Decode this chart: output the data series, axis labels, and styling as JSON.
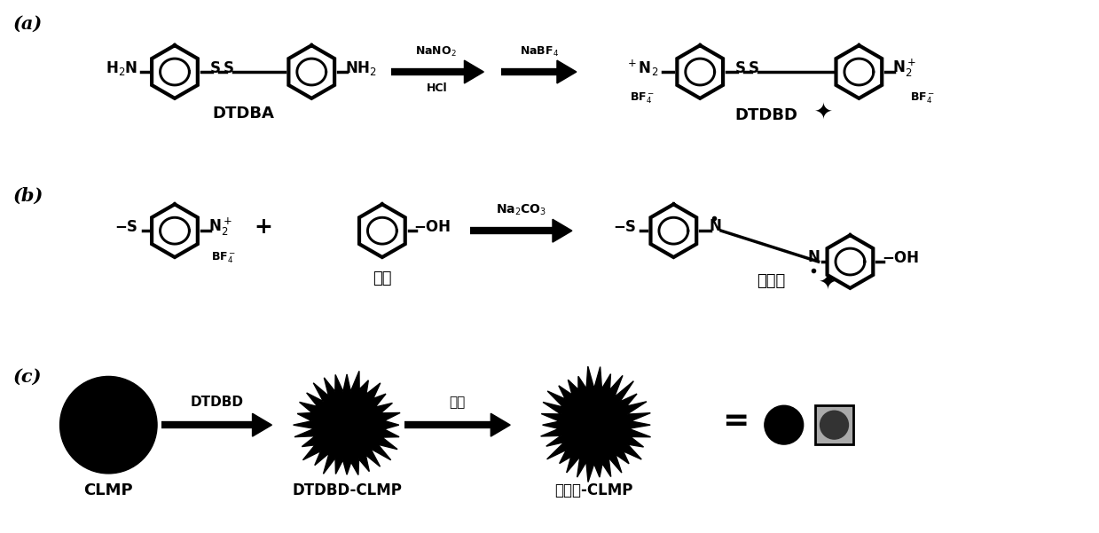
{
  "bg_color": "#ffffff",
  "text_color": "#000000",
  "panel_a": {
    "label": "(a)",
    "reactant_name": "DTDBA",
    "reagent1_top": "NaNO$_2$",
    "reagent1_bot": "HCl",
    "reagent2_top": "NaBF$_4$",
    "product_name": "DTDBD"
  },
  "panel_b": {
    "label": "(b)",
    "reagent_label": "Na$_2$CO$_3$",
    "phenol_label": "苯酚",
    "product_label": "偶氮苯"
  },
  "panel_c": {
    "label": "(c)",
    "arrow1_label": "DTDBD",
    "arrow2_label": "苯酚",
    "name1": "CLMP",
    "name2": "DTDBD-CLMP",
    "name3": "偶氮苯-CLMP"
  }
}
